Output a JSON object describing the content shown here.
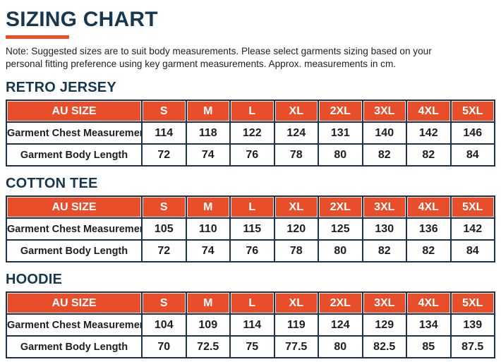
{
  "page": {
    "title": "SIZING CHART",
    "note_line1": "Note: Suggested sizes are to suit body measurements. Please select garments sizing based on your",
    "note_line2": "personal fitting preference using key garment measurements. Approx. measurements in cm."
  },
  "colors": {
    "heading_navy": "#17364F",
    "accent_orange": "#E94E2B",
    "table_border_navy": "#1C3350"
  },
  "table_header": [
    "AU SIZE",
    "S",
    "M",
    "L",
    "XL",
    "2XL",
    "3XL",
    "4XL",
    "5XL"
  ],
  "sections": [
    {
      "heading": "RETRO JERSEY",
      "rows": [
        {
          "label": "Garment Chest Measurement",
          "values": [
            "114",
            "118",
            "122",
            "124",
            "131",
            "140",
            "142",
            "146"
          ]
        },
        {
          "label": "Garment Body Length",
          "values": [
            "72",
            "74",
            "76",
            "78",
            "80",
            "82",
            "82",
            "84"
          ]
        }
      ]
    },
    {
      "heading": "COTTON TEE",
      "rows": [
        {
          "label": "Garment Chest Measurement",
          "values": [
            "105",
            "110",
            "115",
            "120",
            "125",
            "130",
            "136",
            "142"
          ]
        },
        {
          "label": "Garment Body Length",
          "values": [
            "72",
            "74",
            "76",
            "78",
            "80",
            "82",
            "82",
            "84"
          ]
        }
      ]
    },
    {
      "heading": "HOODIE",
      "rows": [
        {
          "label": "Garment Chest Measurement",
          "values": [
            "104",
            "109",
            "114",
            "119",
            "124",
            "129",
            "134",
            "139"
          ]
        },
        {
          "label": "Garment Body Length",
          "values": [
            "70",
            "72.5",
            "75",
            "77.5",
            "80",
            "82.5",
            "85",
            "87.5"
          ]
        }
      ]
    }
  ]
}
